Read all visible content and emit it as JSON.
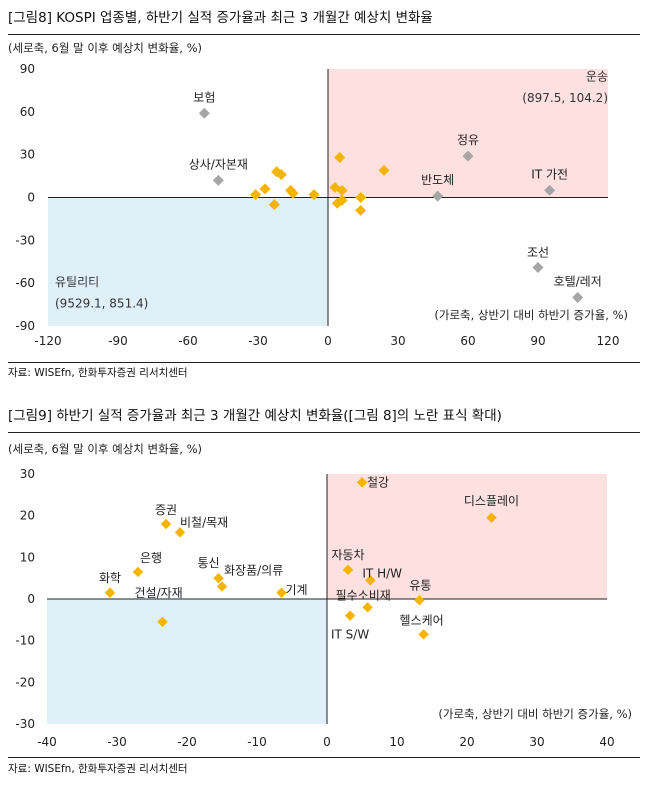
{
  "figures": [
    {
      "title": "[그림8]    KOSPI 업종별, 하반기 실적 증가율과 최근 3 개월간 예상치 변화율",
      "source": "자료: WISEfn, 한화투자증권 리서치센터"
    },
    {
      "title": "[그림9]    하반기 실적 증가율과 최근 3 개월간 예상치 변화율([그림 8]의 노란 표식 확대)",
      "source": "자료: WISEfn, 한화투자증권 리서치센터"
    }
  ],
  "chart_data": [
    {
      "type": "scatter",
      "ylabel": "(세로축, 6월 말 이후 예상치 변화율, %)",
      "xlabel": "(가로축, 상반기 대비 하반기 증가율, %)",
      "xlim": [
        -120,
        120
      ],
      "ylim": [
        -90,
        90
      ],
      "xticks": [
        -120,
        -90,
        -60,
        -30,
        0,
        30,
        60,
        90,
        120
      ],
      "yticks": [
        -90,
        -60,
        -30,
        0,
        30,
        60,
        90
      ],
      "quadrant_colors": {
        "upper_right": "#fde0e0",
        "lower_left": "#dff0f8"
      },
      "annotations": [
        {
          "text": "운송",
          "x": 120,
          "y": 82
        },
        {
          "text": "(897.5, 104.2)",
          "x": 120,
          "y": 67
        },
        {
          "text": "유틸리티",
          "x": -117,
          "y": -62
        },
        {
          "text": "(9529.1, 851.4)",
          "x": -117,
          "y": -77
        }
      ],
      "series": [
        {
          "color": "#a6a6a6",
          "points": [
            {
              "label": "보험",
              "x": -53,
              "y": 59
            },
            {
              "label": "상사/자본재",
              "x": -47,
              "y": 12
            },
            {
              "label": "반도체",
              "x": 47,
              "y": 1
            },
            {
              "label": "정유",
              "x": 60,
              "y": 29
            },
            {
              "label": "IT 가전",
              "x": 95,
              "y": 5
            },
            {
              "label": "조선",
              "x": 90,
              "y": -49
            },
            {
              "label": "호텔/레저",
              "x": 107,
              "y": -70
            }
          ]
        },
        {
          "color": "#f5b400",
          "points": [
            {
              "label": "",
              "x": 5,
              "y": 28
            },
            {
              "label": "",
              "x": 24,
              "y": 19
            },
            {
              "label": "",
              "x": -22,
              "y": 18
            },
            {
              "label": "",
              "x": -20,
              "y": 16
            },
            {
              "label": "",
              "x": -27,
              "y": 6
            },
            {
              "label": "",
              "x": -31,
              "y": 2
            },
            {
              "label": "",
              "x": -23,
              "y": -5
            },
            {
              "label": "",
              "x": -16,
              "y": 5
            },
            {
              "label": "",
              "x": -15,
              "y": 3
            },
            {
              "label": "",
              "x": -6,
              "y": 2
            },
            {
              "label": "",
              "x": 3,
              "y": 7
            },
            {
              "label": "",
              "x": 6,
              "y": 5
            },
            {
              "label": "",
              "x": 6,
              "y": -2
            },
            {
              "label": "",
              "x": 4,
              "y": -4
            },
            {
              "label": "",
              "x": 14,
              "y": 0
            },
            {
              "label": "",
              "x": 14,
              "y": -9
            }
          ]
        }
      ]
    },
    {
      "type": "scatter",
      "ylabel": "(세로축, 6월 말 이후 예상치 변화율, %)",
      "xlabel": "(가로축, 상반기 대비 하반기 증가율, %)",
      "xlim": [
        -40,
        40
      ],
      "ylim": [
        -30,
        30
      ],
      "xticks": [
        -40,
        -30,
        -20,
        -10,
        0,
        10,
        20,
        30,
        40
      ],
      "yticks": [
        -30,
        -20,
        -10,
        0,
        10,
        20,
        30
      ],
      "quadrant_colors": {
        "upper_right": "#fde0e0",
        "lower_left": "#dff0f8"
      },
      "series": [
        {
          "color": "#f5b400",
          "points": [
            {
              "label": "철강",
              "x": 5,
              "y": 28
            },
            {
              "label": "디스플레이",
              "x": 23.5,
              "y": 19.5
            },
            {
              "label": "증권",
              "x": -23,
              "y": 18
            },
            {
              "label": "비철/목재",
              "x": -21,
              "y": 16
            },
            {
              "label": "은행",
              "x": -27,
              "y": 6.5
            },
            {
              "label": "화학",
              "x": -31,
              "y": 1.5
            },
            {
              "label": "통신",
              "x": -15.5,
              "y": 5
            },
            {
              "label": "화장품/의류",
              "x": -15,
              "y": 3
            },
            {
              "label": "기계",
              "x": -6.5,
              "y": 1.5
            },
            {
              "label": "자동차",
              "x": 3,
              "y": 7
            },
            {
              "label": "IT H/W",
              "x": 6.2,
              "y": 4.5
            },
            {
              "label": "유통",
              "x": 13.2,
              "y": -0.3
            },
            {
              "label": "필수소비재",
              "x": 5.8,
              "y": -2
            },
            {
              "label": "IT S/W",
              "x": 3.3,
              "y": -4
            },
            {
              "label": "헬스케어",
              "x": 13.8,
              "y": -8.5
            },
            {
              "label": "건설/자재",
              "x": -23.5,
              "y": -5.5
            }
          ]
        }
      ]
    }
  ]
}
